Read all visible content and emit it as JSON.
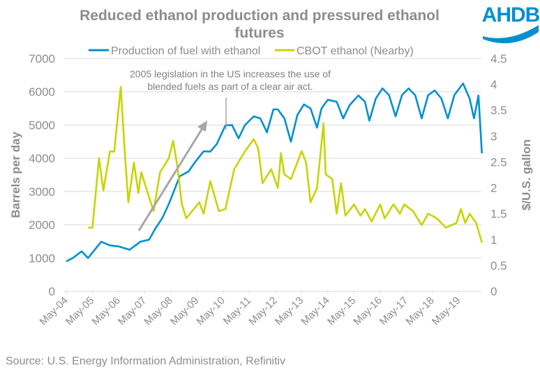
{
  "logo": {
    "text": "AHDB",
    "color": "#0090d0"
  },
  "chart_data": {
    "type": "line",
    "title": "Reduced ethanol production and pressured ethanol futures",
    "title_lines": [
      "Reduced ethanol production and pressured ethanol",
      "futures"
    ],
    "ylabel": "Barrels per day",
    "y2label": "$/U.S. gallon",
    "ylim": [
      0,
      7000
    ],
    "y2lim": [
      0,
      4.5
    ],
    "yticks": [
      "0",
      "1000",
      "2000",
      "3000",
      "4000",
      "5000",
      "6000",
      "7000"
    ],
    "y2ticks": [
      "0",
      "0.5",
      "1",
      "1.5",
      "2",
      "2.5",
      "3",
      "3.5",
      "4",
      "4.5"
    ],
    "xticks": [
      "May-04",
      "May-05",
      "May-06",
      "May-07",
      "May-08",
      "May-09",
      "May-10",
      "May-11",
      "May-12",
      "May-13",
      "May-14",
      "May-15",
      "May-16",
      "May-17",
      "May-18",
      "May-19"
    ],
    "grid": true,
    "legend_position": "top",
    "annotation": [
      "2005 legislation in the US increases the use of",
      "blended fuels as part of a clear air act."
    ],
    "source": "Source: U.S. Energy Information Administration, Refinitiv",
    "series": [
      {
        "name": "Production of fuel with ethanol",
        "axis": "left",
        "color": "#0090d0",
        "points": [
          [
            "2004-05-01",
            900
          ],
          [
            "2004-08-01",
            1000
          ],
          [
            "2004-12-01",
            1200
          ],
          [
            "2005-03-01",
            1000
          ],
          [
            "2005-09-01",
            1490
          ],
          [
            "2006-01-01",
            1380
          ],
          [
            "2006-05-01",
            1350
          ],
          [
            "2006-10-01",
            1250
          ],
          [
            "2007-03-01",
            1490
          ],
          [
            "2007-07-01",
            1550
          ],
          [
            "2007-10-01",
            1900
          ],
          [
            "2008-01-01",
            2200
          ],
          [
            "2008-04-01",
            2620
          ],
          [
            "2008-09-01",
            3460
          ],
          [
            "2009-01-01",
            3600
          ],
          [
            "2009-04-01",
            3880
          ],
          [
            "2009-08-01",
            4210
          ],
          [
            "2009-11-01",
            4200
          ],
          [
            "2010-02-01",
            4430
          ],
          [
            "2010-06-01",
            4990
          ],
          [
            "2010-09-01",
            5000
          ],
          [
            "2010-12-01",
            4600
          ],
          [
            "2011-03-01",
            5000
          ],
          [
            "2011-07-01",
            5260
          ],
          [
            "2011-10-01",
            5200
          ],
          [
            "2012-01-01",
            4780
          ],
          [
            "2012-04-01",
            5470
          ],
          [
            "2012-06-01",
            5470
          ],
          [
            "2012-09-01",
            5200
          ],
          [
            "2012-12-01",
            4500
          ],
          [
            "2013-03-01",
            5300
          ],
          [
            "2013-06-01",
            5620
          ],
          [
            "2013-09-01",
            5500
          ],
          [
            "2013-12-01",
            4920
          ],
          [
            "2014-02-01",
            5500
          ],
          [
            "2014-05-01",
            5760
          ],
          [
            "2014-09-01",
            5700
          ],
          [
            "2014-12-01",
            5200
          ],
          [
            "2015-03-01",
            5600
          ],
          [
            "2015-07-01",
            5890
          ],
          [
            "2015-10-01",
            5700
          ],
          [
            "2015-12-01",
            5130
          ],
          [
            "2016-03-01",
            5800
          ],
          [
            "2016-06-01",
            6100
          ],
          [
            "2016-09-01",
            5900
          ],
          [
            "2016-12-01",
            5260
          ],
          [
            "2017-03-01",
            5900
          ],
          [
            "2017-06-01",
            6100
          ],
          [
            "2017-09-01",
            5900
          ],
          [
            "2017-12-01",
            5200
          ],
          [
            "2018-03-01",
            5900
          ],
          [
            "2018-06-01",
            6040
          ],
          [
            "2018-09-01",
            5800
          ],
          [
            "2018-12-01",
            5200
          ],
          [
            "2019-03-01",
            5900
          ],
          [
            "2019-07-01",
            6250
          ],
          [
            "2019-10-01",
            5800
          ],
          [
            "2019-12-01",
            5200
          ],
          [
            "2020-02-01",
            5890
          ],
          [
            "2020-03-20",
            4150
          ]
        ]
      },
      {
        "name": "CBOT ethanol (Nearby)",
        "axis": "right",
        "color": "#c8d400",
        "points": [
          [
            "2005-03-01",
            1.23
          ],
          [
            "2005-05-01",
            1.23
          ],
          [
            "2005-08-01",
            2.57
          ],
          [
            "2005-10-01",
            1.95
          ],
          [
            "2006-01-01",
            2.71
          ],
          [
            "2006-03-01",
            2.7
          ],
          [
            "2006-06-01",
            3.95
          ],
          [
            "2006-08-01",
            2.57
          ],
          [
            "2006-09-15",
            1.72
          ],
          [
            "2006-12-01",
            2.49
          ],
          [
            "2007-02-01",
            1.9
          ],
          [
            "2007-03-15",
            2.3
          ],
          [
            "2007-06-01",
            1.95
          ],
          [
            "2007-09-01",
            1.55
          ],
          [
            "2007-12-01",
            2.3
          ],
          [
            "2008-04-01",
            2.57
          ],
          [
            "2008-06-01",
            2.91
          ],
          [
            "2008-08-01",
            2.4
          ],
          [
            "2008-10-01",
            1.68
          ],
          [
            "2008-12-01",
            1.41
          ],
          [
            "2009-06-01",
            1.72
          ],
          [
            "2009-08-01",
            1.5
          ],
          [
            "2009-11-01",
            2.13
          ],
          [
            "2010-03-01",
            1.55
          ],
          [
            "2010-06-01",
            1.59
          ],
          [
            "2010-10-01",
            2.36
          ],
          [
            "2011-03-01",
            2.71
          ],
          [
            "2011-07-01",
            2.94
          ],
          [
            "2011-09-01",
            2.76
          ],
          [
            "2011-11-01",
            2.09
          ],
          [
            "2012-03-01",
            2.36
          ],
          [
            "2012-06-01",
            2.0
          ],
          [
            "2012-07-15",
            2.67
          ],
          [
            "2012-09-01",
            2.26
          ],
          [
            "2012-12-01",
            2.17
          ],
          [
            "2013-05-01",
            2.71
          ],
          [
            "2013-07-01",
            2.49
          ],
          [
            "2013-09-01",
            1.72
          ],
          [
            "2013-12-01",
            2.0
          ],
          [
            "2014-03-01",
            3.25
          ],
          [
            "2014-04-01",
            2.26
          ],
          [
            "2014-07-01",
            2.17
          ],
          [
            "2014-09-01",
            1.5
          ],
          [
            "2014-11-01",
            2.09
          ],
          [
            "2015-01-01",
            1.46
          ],
          [
            "2015-05-01",
            1.68
          ],
          [
            "2015-08-01",
            1.46
          ],
          [
            "2015-10-01",
            1.59
          ],
          [
            "2016-01-01",
            1.35
          ],
          [
            "2016-05-01",
            1.68
          ],
          [
            "2016-07-01",
            1.41
          ],
          [
            "2016-11-01",
            1.68
          ],
          [
            "2017-02-01",
            1.5
          ],
          [
            "2017-04-01",
            1.68
          ],
          [
            "2017-08-01",
            1.55
          ],
          [
            "2017-12-01",
            1.28
          ],
          [
            "2018-03-01",
            1.5
          ],
          [
            "2018-07-01",
            1.41
          ],
          [
            "2018-11-01",
            1.23
          ],
          [
            "2019-04-01",
            1.32
          ],
          [
            "2019-06-01",
            1.59
          ],
          [
            "2019-08-01",
            1.32
          ],
          [
            "2019-10-01",
            1.5
          ],
          [
            "2020-01-01",
            1.32
          ],
          [
            "2020-03-20",
            0.94
          ]
        ]
      }
    ]
  }
}
